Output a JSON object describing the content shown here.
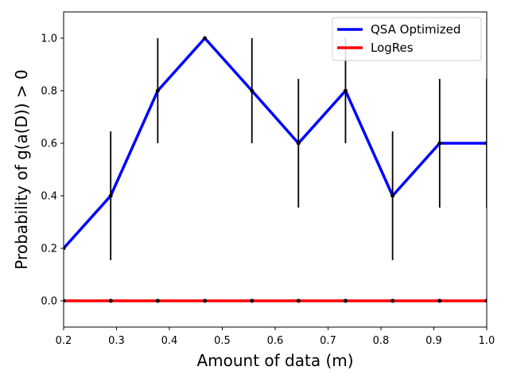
{
  "chart_data": {
    "type": "line",
    "xlabel": "Amount of data (m)",
    "ylabel": "Probability of g(a(D)) > 0",
    "xlim": [
      0.2,
      1.0
    ],
    "ylim": [
      -0.1,
      1.1
    ],
    "x_ticks": [
      "0.2",
      "0.3",
      "0.4",
      "0.5",
      "0.6",
      "0.7",
      "0.8",
      "0.9",
      "1.0"
    ],
    "y_ticks": [
      "0.0",
      "0.2",
      "0.4",
      "0.6",
      "0.8",
      "1.0"
    ],
    "grid": false,
    "legend": "top-right",
    "x": [
      0.2,
      0.289,
      0.378,
      0.467,
      0.556,
      0.644,
      0.733,
      0.822,
      0.911,
      1.0
    ],
    "series": [
      {
        "name": "QSA Optimized",
        "color": "#0000ff",
        "values": [
          0.2,
          0.4,
          0.8,
          1.0,
          0.8,
          0.6,
          0.8,
          0.4,
          0.6,
          0.6
        ],
        "error": [
          0.0,
          0.245,
          0.2,
          0.0,
          0.2,
          0.245,
          0.2,
          0.245,
          0.245,
          0.245
        ]
      },
      {
        "name": "LogRes",
        "color": "#ff0000",
        "values": [
          0.0,
          0.0,
          0.0,
          0.0,
          0.0,
          0.0,
          0.0,
          0.0,
          0.0,
          0.0
        ],
        "error": [
          0.0,
          0.0,
          0.0,
          0.0,
          0.0,
          0.0,
          0.0,
          0.0,
          0.0,
          0.0
        ]
      }
    ]
  }
}
